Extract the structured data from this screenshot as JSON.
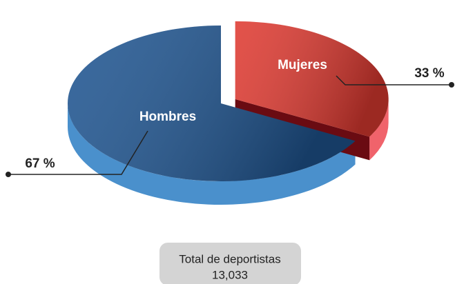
{
  "chart_data": {
    "type": "pie",
    "categories": [
      "Hombres",
      "Mujeres"
    ],
    "values": [
      67,
      33
    ],
    "value_labels": [
      "67 %",
      "33 %"
    ],
    "colors": [
      "#1f5591",
      "#df3a31"
    ],
    "total_label": "Total de deportistas",
    "total": "13,033"
  }
}
